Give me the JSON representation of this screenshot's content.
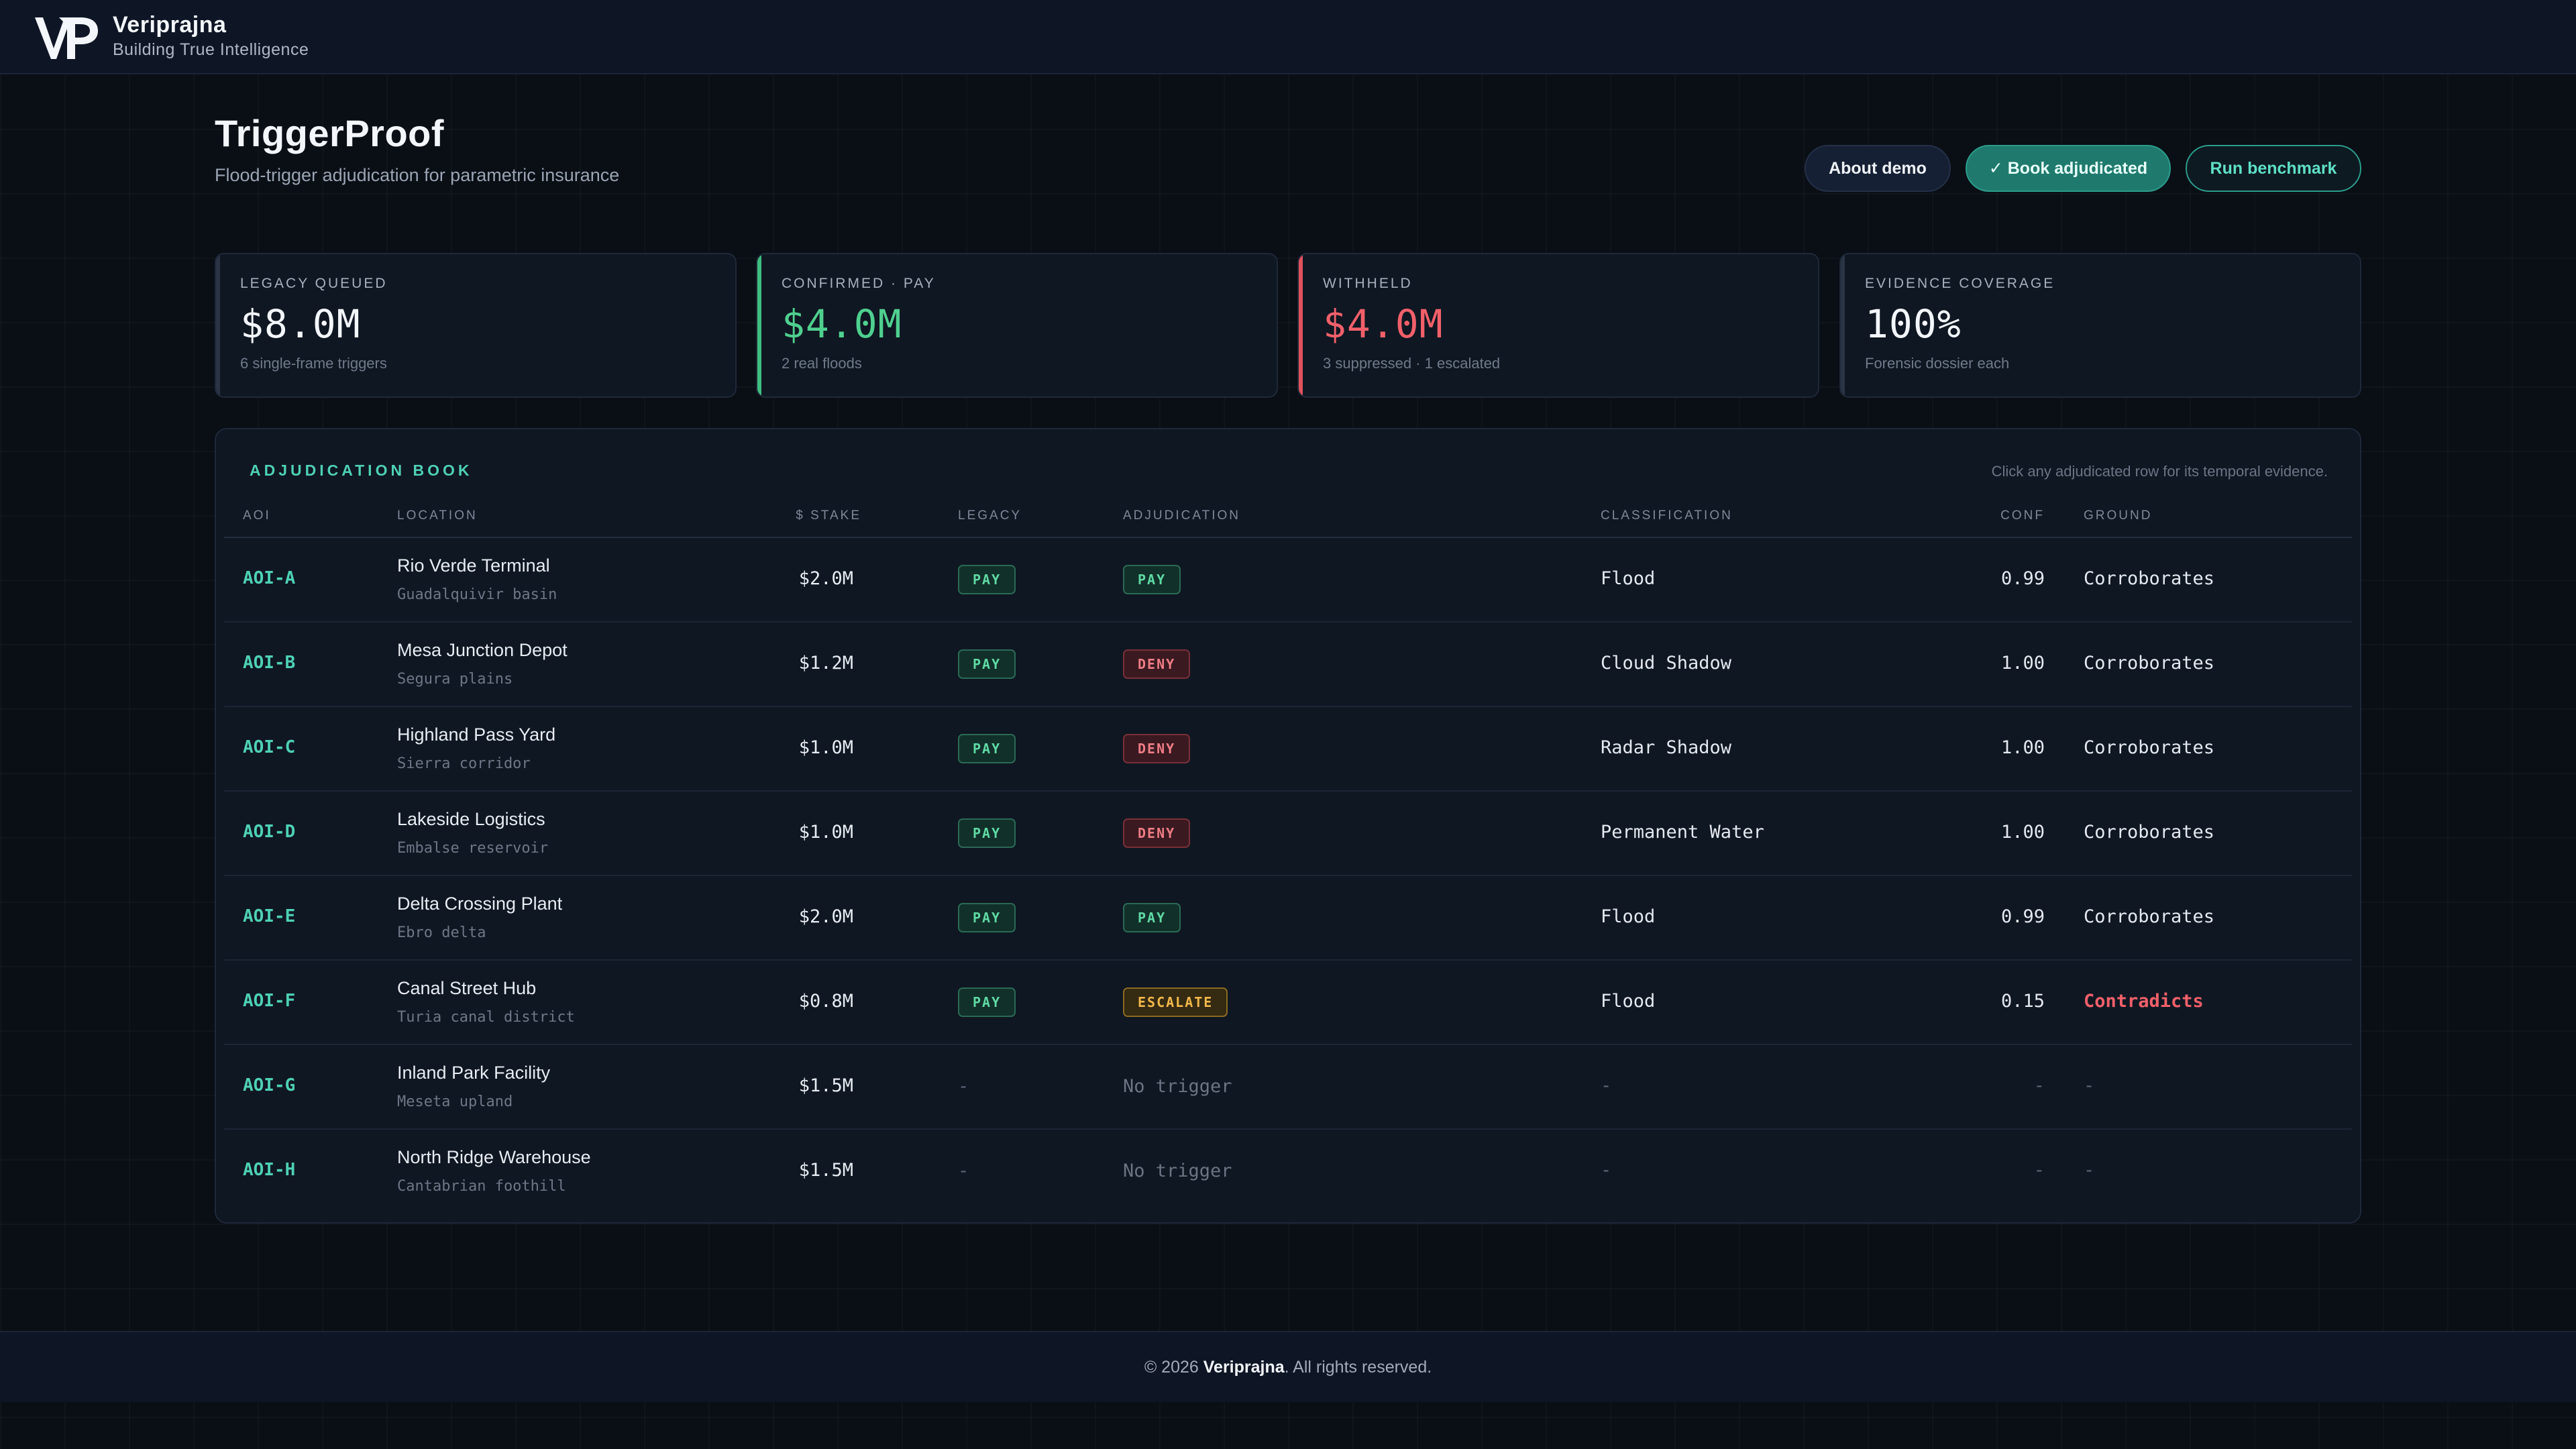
{
  "brand": {
    "name": "Veriprajna",
    "tagline": "Building True Intelligence",
    "logo_text": "VP"
  },
  "page": {
    "title": "TriggerProof",
    "subtitle": "Flood-trigger adjudication for parametric insurance"
  },
  "actions": {
    "about": "About demo",
    "book": "✓ Book adjudicated",
    "run": "Run benchmark"
  },
  "kpis": [
    {
      "label": "LEGACY QUEUED",
      "value": "$8.0M",
      "sub": "6 single-frame triggers",
      "color": "#f3f6fa",
      "accent": "#2a3444"
    },
    {
      "label": "CONFIRMED · PAY",
      "value": "$4.0M",
      "sub": "2 real floods",
      "color": "#4fd08f",
      "accent": "#3fbf7f"
    },
    {
      "label": "WITHHELD",
      "value": "$4.0M",
      "sub": "3 suppressed · 1 escalated",
      "color": "#f2606a",
      "accent": "#e0525c"
    },
    {
      "label": "EVIDENCE COVERAGE",
      "value": "100%",
      "sub": "Forensic dossier each",
      "color": "#f3f6fa",
      "accent": "#2a3444"
    }
  ],
  "table": {
    "title": "ADJUDICATION BOOK",
    "hint": "Click any adjudicated row for its temporal evidence.",
    "columns": {
      "aoi": "AOI",
      "location": "LOCATION",
      "stake": "$ STAKE",
      "legacy": "LEGACY",
      "adjudication": "ADJUDICATION",
      "classification": "CLASSIFICATION",
      "conf": "CONF",
      "ground": "GROUND"
    },
    "rows": [
      {
        "aoi": "AOI-A",
        "location": "Rio Verde Terminal",
        "region": "Guadalquivir basin",
        "stake": "$2.0M",
        "legacy": "PAY",
        "adjudication": "PAY",
        "classification": "Flood",
        "conf": "0.99",
        "ground": "Corroborates"
      },
      {
        "aoi": "AOI-B",
        "location": "Mesa Junction Depot",
        "region": "Segura plains",
        "stake": "$1.2M",
        "legacy": "PAY",
        "adjudication": "DENY",
        "classification": "Cloud Shadow",
        "conf": "1.00",
        "ground": "Corroborates"
      },
      {
        "aoi": "AOI-C",
        "location": "Highland Pass Yard",
        "region": "Sierra corridor",
        "stake": "$1.0M",
        "legacy": "PAY",
        "adjudication": "DENY",
        "classification": "Radar Shadow",
        "conf": "1.00",
        "ground": "Corroborates"
      },
      {
        "aoi": "AOI-D",
        "location": "Lakeside Logistics",
        "region": "Embalse reservoir",
        "stake": "$1.0M",
        "legacy": "PAY",
        "adjudication": "DENY",
        "classification": "Permanent Water",
        "conf": "1.00",
        "ground": "Corroborates"
      },
      {
        "aoi": "AOI-E",
        "location": "Delta Crossing Plant",
        "region": "Ebro delta",
        "stake": "$2.0M",
        "legacy": "PAY",
        "adjudication": "PAY",
        "classification": "Flood",
        "conf": "0.99",
        "ground": "Corroborates"
      },
      {
        "aoi": "AOI-F",
        "location": "Canal Street Hub",
        "region": "Turia canal district",
        "stake": "$0.8M",
        "legacy": "PAY",
        "adjudication": "ESCALATE",
        "classification": "Flood",
        "conf": "0.15",
        "ground": "Contradicts"
      },
      {
        "aoi": "AOI-G",
        "location": "Inland Park Facility",
        "region": "Meseta upland",
        "stake": "$1.5M",
        "legacy": "-",
        "adjudication": "No trigger",
        "classification": "-",
        "conf": "-",
        "ground": "-"
      },
      {
        "aoi": "AOI-H",
        "location": "North Ridge Warehouse",
        "region": "Cantabrian foothill",
        "stake": "$1.5M",
        "legacy": "-",
        "adjudication": "No trigger",
        "classification": "-",
        "conf": "-",
        "ground": "-"
      }
    ]
  },
  "footer": {
    "prefix": "© 2026",
    "brand": "Veriprajna",
    "suffix": ". All rights reserved."
  }
}
